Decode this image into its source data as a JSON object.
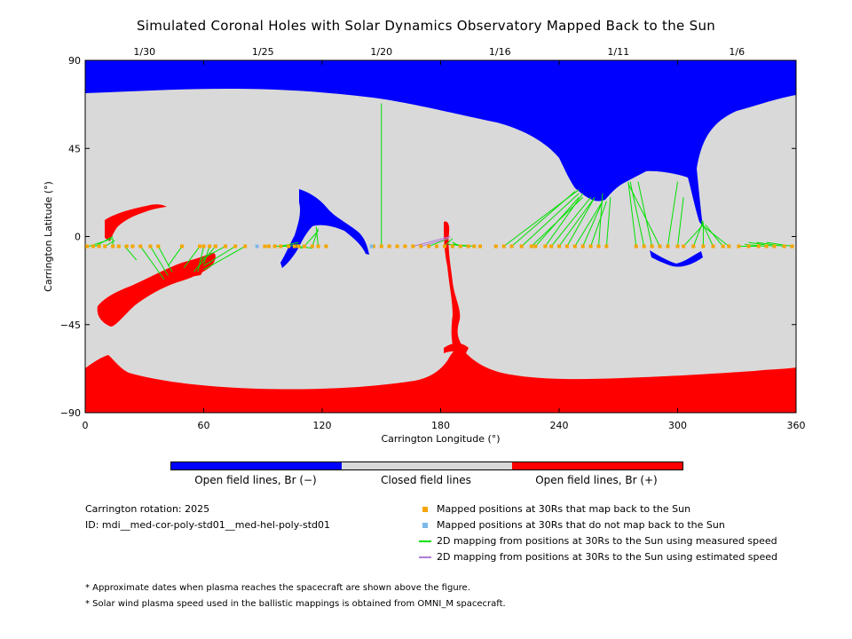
{
  "title": "Simulated Coronal Holes with Solar Dynamics Observatory Mapped Back to the Sun",
  "colors": {
    "open_negative": "#0000ff",
    "closed": "#d9d9d9",
    "open_positive": "#ff0000",
    "mapped_back": "#f5a500",
    "not_mapped": "#7cb9e8",
    "measured_speed": "#00e000",
    "estimated_speed": "#b07cd8"
  },
  "colorbar": {
    "left_label": "Open field lines, Br (−)",
    "middle_label": "Closed field lines",
    "right_label": "Open field lines, Br (+)"
  },
  "info": {
    "rotation": "Carrington rotation: 2025",
    "id": "ID: mdi__med-cor-poly-std01__med-hel-poly-std01"
  },
  "legend": {
    "mapped_back": "Mapped positions at 30Rs that map back to the Sun",
    "not_mapped": "Mapped positions at 30Rs that do not map back to the Sun",
    "measured": "2D mapping from positions at 30Rs to the Sun using measured speed",
    "estimated": "2D mapping from positions at 30Rs to the Sun using estimated speed"
  },
  "notes": [
    "* Approximate dates when plasma reaches the spacecraft are shown above the figure.",
    "* Solar wind plasma speed used in the ballistic mappings is obtained from OMNI_M spacecraft."
  ],
  "chart_data": {
    "type": "map",
    "xlabel": "Carrington Longitude (°)",
    "ylabel": "Carrington Latitude (°)",
    "xlim": [
      0,
      360
    ],
    "ylim": [
      -90,
      90
    ],
    "xticks": [
      0,
      60,
      120,
      180,
      240,
      300,
      360
    ],
    "yticks": [
      90,
      45,
      0,
      -45,
      -90
    ],
    "yticklabels": [
      "90",
      "45",
      "0",
      "−45",
      "−90"
    ],
    "top_dates": [
      {
        "label": "1/30",
        "lon": 30
      },
      {
        "label": "1/25",
        "lon": 90
      },
      {
        "label": "1/20",
        "lon": 150
      },
      {
        "label": "1/16",
        "lon": 210
      },
      {
        "label": "1/11",
        "lon": 270
      },
      {
        "label": "1/6",
        "lon": 330
      }
    ],
    "mapped_point_lat": -5,
    "mapped_longitudes": [
      1,
      4,
      7,
      10,
      14,
      17,
      21,
      24,
      28,
      33,
      37,
      49,
      58,
      60,
      63,
      66,
      71,
      76,
      81,
      91,
      93,
      96,
      99,
      103,
      106,
      108,
      111,
      115,
      118,
      122,
      146,
      150,
      154,
      158,
      162,
      166,
      170,
      174,
      178,
      182,
      186,
      190,
      194,
      197,
      200,
      208,
      212,
      216,
      221,
      226,
      228,
      233,
      236,
      240,
      244,
      248,
      252,
      256,
      260,
      264,
      279,
      283,
      287,
      291,
      295,
      300,
      303,
      308,
      313,
      318,
      323,
      326,
      331,
      336,
      341,
      345,
      349,
      354,
      358
    ],
    "not_mapped_longitudes": [
      87,
      145
    ],
    "mappings_measured": [
      [
        2,
        -5,
        14,
        -1
      ],
      [
        5,
        -5,
        14,
        0
      ],
      [
        10,
        -5,
        15,
        -2
      ],
      [
        14,
        -5,
        14,
        -1
      ],
      [
        20,
        -5,
        26,
        -12
      ],
      [
        28,
        -5,
        40,
        -22
      ],
      [
        33,
        -5,
        42,
        -20
      ],
      [
        37,
        -5,
        44,
        -18
      ],
      [
        49,
        -5,
        42,
        -15
      ],
      [
        58,
        -5,
        50,
        -16
      ],
      [
        60,
        -5,
        57,
        -18
      ],
      [
        63,
        -5,
        60,
        -14
      ],
      [
        66,
        -5,
        55,
        -18
      ],
      [
        71,
        -5,
        58,
        -12
      ],
      [
        76,
        -5,
        60,
        -15
      ],
      [
        81,
        -5,
        60,
        -17
      ],
      [
        96,
        -5,
        104,
        -5
      ],
      [
        99,
        -5,
        108,
        -3
      ],
      [
        103,
        -5,
        108,
        -4
      ],
      [
        106,
        -5,
        110,
        -6
      ],
      [
        108,
        -5,
        115,
        -6
      ],
      [
        111,
        -5,
        118,
        3
      ],
      [
        115,
        -5,
        118,
        4
      ],
      [
        118,
        -5,
        117,
        5
      ],
      [
        150,
        -5,
        150,
        68
      ],
      [
        174,
        -5,
        184,
        -1
      ],
      [
        182,
        -5,
        186,
        -1
      ],
      [
        190,
        -5,
        186,
        -3
      ],
      [
        194,
        -5,
        184,
        -4
      ],
      [
        197,
        -5,
        186,
        -4
      ],
      [
        212,
        -5,
        250,
        24
      ],
      [
        216,
        -5,
        248,
        23
      ],
      [
        221,
        -5,
        250,
        22
      ],
      [
        226,
        -5,
        252,
        20
      ],
      [
        228,
        -5,
        250,
        20
      ],
      [
        233,
        -5,
        252,
        22
      ],
      [
        236,
        -5,
        256,
        20
      ],
      [
        240,
        -5,
        258,
        20
      ],
      [
        244,
        -5,
        258,
        20
      ],
      [
        248,
        -5,
        262,
        18
      ],
      [
        252,
        -5,
        262,
        18
      ],
      [
        256,
        -5,
        264,
        18
      ],
      [
        260,
        -5,
        262,
        22
      ],
      [
        264,
        -5,
        266,
        20
      ],
      [
        279,
        -5,
        275,
        28
      ],
      [
        283,
        -5,
        276,
        28
      ],
      [
        287,
        -5,
        280,
        28
      ],
      [
        291,
        -5,
        275,
        27
      ],
      [
        295,
        -5,
        300,
        28
      ],
      [
        300,
        -5,
        303,
        20
      ],
      [
        303,
        -5,
        313,
        6
      ],
      [
        308,
        -5,
        313,
        8
      ],
      [
        313,
        -5,
        313,
        7
      ],
      [
        318,
        -5,
        312,
        8
      ],
      [
        323,
        -5,
        314,
        6
      ],
      [
        326,
        -5,
        312,
        6
      ],
      [
        341,
        -5,
        331,
        -5
      ],
      [
        345,
        -5,
        334,
        -4
      ],
      [
        349,
        -5,
        336,
        -3
      ],
      [
        354,
        -5,
        340,
        -3
      ],
      [
        358,
        -5,
        345,
        -3
      ]
    ],
    "mappings_estimated": [
      [
        166,
        -5,
        185,
        0
      ],
      [
        170,
        -5,
        184,
        -1
      ]
    ]
  }
}
